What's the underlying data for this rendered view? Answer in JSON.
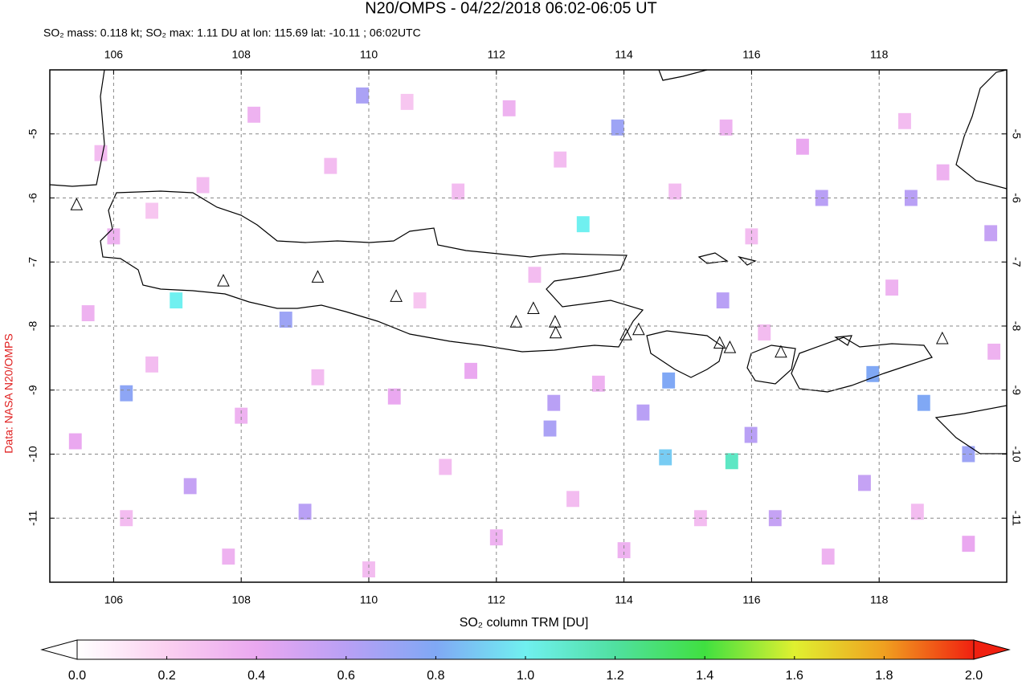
{
  "chart_data": {
    "type": "map",
    "title": "N20/OMPS - 04/22/2018 06:02-06:05 UT",
    "subtitle": "SO₂ mass: 0.118 kt; SO₂ max: 1.11 DU at lon: 115.69 lat: -10.11 ; 06:02UTC",
    "side_label": "Data: NASA N20/OMPS",
    "colorbar_label": "SO₂ column TRM [DU]",
    "xlim": [
      105,
      120
    ],
    "ylim": [
      -12,
      -4
    ],
    "xticks": [
      106,
      108,
      110,
      112,
      114,
      116,
      118
    ],
    "yticks": [
      -5,
      -6,
      -7,
      -8,
      -9,
      -10,
      -11
    ],
    "grid": true,
    "clim": [
      0,
      2
    ],
    "cticks": [
      {
        "value": 0,
        "label": "0.0"
      },
      {
        "value": 0.2,
        "label": "0.2"
      },
      {
        "value": 0.4,
        "label": "0.4"
      },
      {
        "value": 0.6,
        "label": "0.6"
      },
      {
        "value": 0.8,
        "label": "0.8"
      },
      {
        "value": 1,
        "label": "1.0"
      },
      {
        "value": 1.2,
        "label": "1.2"
      },
      {
        "value": 1.4,
        "label": "1.4"
      },
      {
        "value": 1.6,
        "label": "1.6"
      },
      {
        "value": 1.8,
        "label": "1.8"
      },
      {
        "value": 2,
        "label": "2.0"
      }
    ],
    "colormap": [
      "#ffffff",
      "#fbd0f0",
      "#eaa8f0",
      "#b9a0f5",
      "#80a8f5",
      "#70f0f0",
      "#50e0a0",
      "#40e040",
      "#e0f030",
      "#f0a020",
      "#f02010"
    ],
    "x": [
      106.98,
      113.36,
      115.69,
      114.65,
      114.7,
      108.7,
      106.2,
      113.9,
      109.9,
      117.9,
      118.7,
      119.4,
      119.75,
      117.1,
      118.5,
      115.55,
      112.84,
      112.9,
      114.3,
      107.2,
      109.0,
      116.37,
      117.77,
      115.99,
      105.8,
      106.6,
      107.4,
      108.2,
      109.4,
      110.6,
      111.4,
      112.2,
      113.0,
      114.8,
      115.6,
      116.8,
      118.4,
      119.0,
      105.6,
      106.6,
      108.0,
      109.2,
      110.4,
      111.2,
      112.0,
      113.2,
      114.0,
      115.2,
      116.2,
      117.2,
      118.6,
      119.4,
      106.2,
      107.8,
      110.0,
      111.6,
      113.6,
      118.2,
      106.0,
      105.4,
      110.8,
      112.6,
      116.0,
      119.8
    ],
    "y": [
      -7.6,
      -6.41,
      -10.11,
      -10.05,
      -8.85,
      -7.9,
      -9.05,
      -4.9,
      -4.4,
      -8.75,
      -9.2,
      -10.0,
      -6.55,
      -6.0,
      -6.0,
      -7.6,
      -9.6,
      -9.2,
      -9.35,
      -10.5,
      -10.9,
      -11.0,
      -10.45,
      -9.7,
      -5.3,
      -6.2,
      -5.8,
      -4.7,
      -5.5,
      -4.5,
      -5.9,
      -4.6,
      -5.4,
      -5.9,
      -4.9,
      -5.2,
      -4.8,
      -5.6,
      -7.8,
      -8.6,
      -9.4,
      -8.8,
      -9.1,
      -10.2,
      -11.3,
      -10.7,
      -11.5,
      -11.0,
      -8.1,
      -11.6,
      -10.9,
      -11.4,
      -11.0,
      -11.6,
      -11.8,
      -8.7,
      -8.9,
      -7.4,
      -6.6,
      -9.8,
      -7.6,
      -7.2,
      -6.6,
      -8.4
    ],
    "values": [
      1.0,
      1.0,
      1.11,
      0.9,
      0.8,
      0.7,
      0.75,
      0.7,
      0.65,
      0.8,
      0.8,
      0.7,
      0.55,
      0.6,
      0.6,
      0.6,
      0.65,
      0.6,
      0.6,
      0.55,
      0.6,
      0.55,
      0.55,
      0.6,
      0.3,
      0.25,
      0.3,
      0.35,
      0.3,
      0.25,
      0.3,
      0.35,
      0.3,
      0.3,
      0.35,
      0.4,
      0.3,
      0.35,
      0.35,
      0.3,
      0.35,
      0.3,
      0.4,
      0.3,
      0.35,
      0.3,
      0.35,
      0.3,
      0.3,
      0.35,
      0.3,
      0.4,
      0.3,
      0.35,
      0.3,
      0.4,
      0.35,
      0.35,
      0.35,
      0.4,
      0.25,
      0.3,
      0.3,
      0.35
    ],
    "volcano_lon": [
      105.42,
      107.72,
      109.2,
      110.43,
      112.31,
      112.58,
      112.92,
      112.93,
      114.03,
      114.23,
      115.5,
      115.66,
      116.46,
      118.99
    ],
    "volcano_lat": [
      -6.11,
      -7.3,
      -7.24,
      -7.54,
      -7.94,
      -7.73,
      -7.94,
      -8.11,
      -8.14,
      -8.06,
      -8.27,
      -8.34,
      -8.41,
      -8.2
    ]
  }
}
